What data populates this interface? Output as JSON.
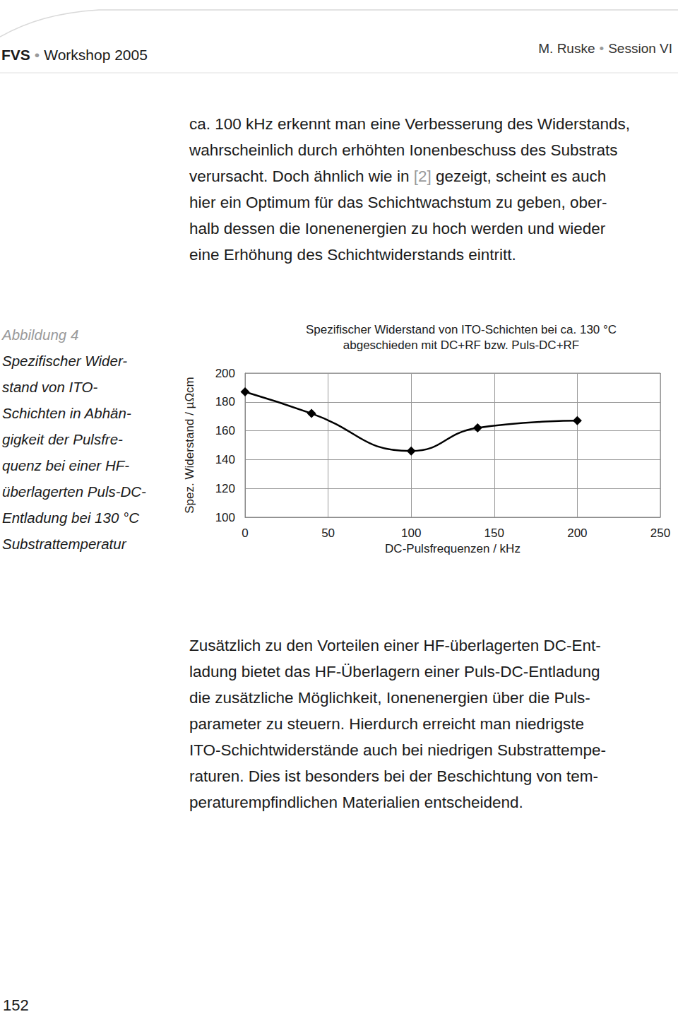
{
  "header": {
    "left": [
      "FVS",
      "Workshop 2005"
    ],
    "right": [
      "M. Ruske",
      "Session VI"
    ],
    "separator": "•"
  },
  "paragraph_top": [
    "ca. 100 kHz erkennt man eine Verbesserung des Widerstands,",
    "wahrscheinlich durch erhöhten Ionenbeschuss des Substrats",
    "verursacht. Doch ähnlich wie in [2] gezeigt, scheint es auch",
    "hier ein Optimum für das Schichtwachstum zu geben, ober-",
    "halb dessen die Ionenenergien zu hoch werden und wieder",
    "eine Erhöhung des Schichtwiderstands eintritt."
  ],
  "reference": "[2]",
  "figure": {
    "label": "Abbildung 4",
    "caption": [
      "Spezifischer Wider-",
      "stand von ITO-",
      "Schichten in Abhän-",
      "gigkeit der Pulsfre-",
      "quenz bei einer HF-",
      "überlagerten Puls-DC-",
      "Entladung bei 130 °C",
      "Substrattemperatur"
    ]
  },
  "chart_data": {
    "type": "line",
    "title": "Spezifischer Widerstand von ITO-Schichten bei ca. 130 °C\nabgeschieden mit DC+RF bzw. Puls-DC+RF",
    "x_label": "DC-Pulsfrequenzen / kHz",
    "y_label": "Spez. Widerstand / µΩcm",
    "x": [
      0,
      40,
      100,
      140,
      200
    ],
    "values": [
      187,
      172,
      146,
      162,
      167
    ],
    "color": "#000000",
    "marker": "diamond",
    "line_style": "smooth",
    "xlim": [
      0,
      250
    ],
    "xticks": [
      0,
      50,
      100,
      150,
      200,
      250
    ],
    "ylim": [
      100,
      200
    ],
    "yticks": [
      100,
      120,
      140,
      160,
      180,
      200
    ],
    "grid": true
  },
  "paragraph_bottom": [
    "Zusätzlich zu den Vorteilen einer HF-überlagerten DC-Ent-",
    "ladung bietet das HF-Überlagern einer Puls-DC-Entladung",
    "die zusätzliche Möglichkeit, Ionenenergien über die Puls-",
    "parameter zu steuern. Hierdurch erreicht man niedrigste",
    "ITO-Schichtwiderstände auch bei niedrigen Substrattempe-",
    "raturen. Dies ist besonders bei der Beschichtung von tem-",
    "peraturempfindlichen Materialien entscheidend."
  ],
  "page_number": "152"
}
